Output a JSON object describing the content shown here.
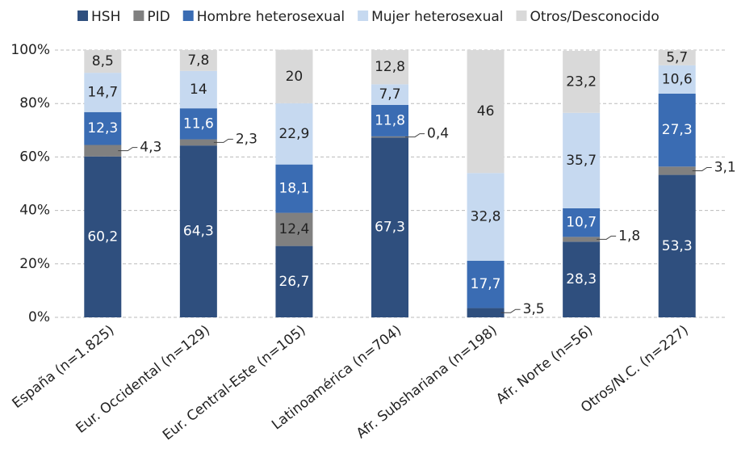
{
  "chart_data": {
    "type": "stacked_bar",
    "categories": [
      "España (n=1.825)",
      "Eur. Occidental (n=129)",
      "Eur. Central-Este (n=105)",
      "Latinoamérica (n=704)",
      "Afr. Subshariana (n=198)",
      "Afr. Norte (n=56)",
      "Otros/N.C. (n=227)"
    ],
    "series": [
      {
        "name": "HSH",
        "color": "#2f4f7e",
        "values": [
          60.2,
          64.3,
          26.7,
          67.3,
          3.5,
          28.3,
          53.3
        ],
        "value_labels": [
          "60,2",
          "64,3",
          "26,7",
          "67,3",
          "3,5",
          "28,3",
          "53,3"
        ]
      },
      {
        "name": "PID",
        "color": "#808080",
        "values": [
          4.3,
          2.3,
          12.4,
          0.4,
          null,
          1.8,
          3.1
        ],
        "value_labels": [
          "4,3",
          "2,3",
          "12,4",
          "0,4",
          null,
          "1,8",
          "3,1"
        ]
      },
      {
        "name": "Hombre heterosexual",
        "color": "#3a6cb3",
        "values": [
          12.3,
          11.6,
          18.1,
          11.8,
          17.7,
          10.7,
          27.3
        ],
        "value_labels": [
          "12,3",
          "11,6",
          "18,1",
          "11,8",
          "17,7",
          "10,7",
          "27,3"
        ]
      },
      {
        "name": "Mujer heterosexual",
        "color": "#c6d9f0",
        "values": [
          14.7,
          14,
          22.9,
          7.7,
          32.8,
          35.7,
          10.6
        ],
        "value_labels": [
          "14,7",
          "14",
          "22,9",
          "7,7",
          "32,8",
          "35,7",
          "10,6"
        ]
      },
      {
        "name": "Otros/Desconocido",
        "color": "#d9d9d9",
        "values": [
          8.5,
          7.8,
          20,
          12.8,
          46,
          23.2,
          5.7
        ],
        "value_labels": [
          "8,5",
          "7,8",
          "20",
          "12,8",
          "46",
          "23,2",
          "5,7"
        ]
      }
    ],
    "ylim": [
      0,
      100
    ],
    "yticks": [
      {
        "value": 0,
        "label": "0%"
      },
      {
        "value": 20,
        "label": "20%"
      },
      {
        "value": 40,
        "label": "40%"
      },
      {
        "value": 60,
        "label": "60%"
      },
      {
        "value": 80,
        "label": "80%"
      },
      {
        "value": 100,
        "label": "100%"
      }
    ],
    "grid": true,
    "legend": "top"
  }
}
